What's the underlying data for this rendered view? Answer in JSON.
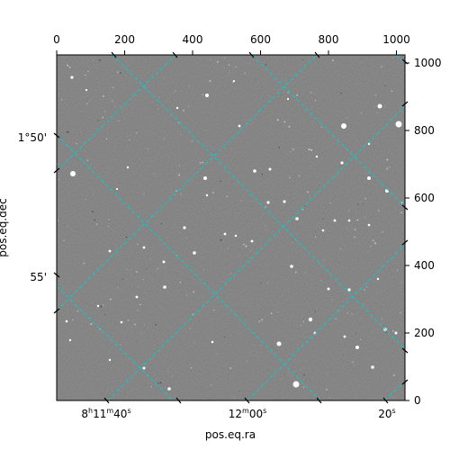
{
  "figure": {
    "xlabel": "pos.eq.ra",
    "ylabel": "pos.eq.dec",
    "top_ticks": [
      "0",
      "200",
      "400",
      "600",
      "800",
      "1000"
    ],
    "right_ticks": [
      "0",
      "200",
      "400",
      "600",
      "800",
      "1000"
    ],
    "ra_ticks": [
      {
        "h": "8",
        "m": "11",
        "s": "40"
      },
      {
        "m": "12",
        "s": "00"
      },
      {
        "s": "20"
      }
    ],
    "dec_ticks": [
      "1°50'",
      "55'"
    ],
    "grid_color": "#00d0d0",
    "background_color": "#7a7a7a"
  }
}
